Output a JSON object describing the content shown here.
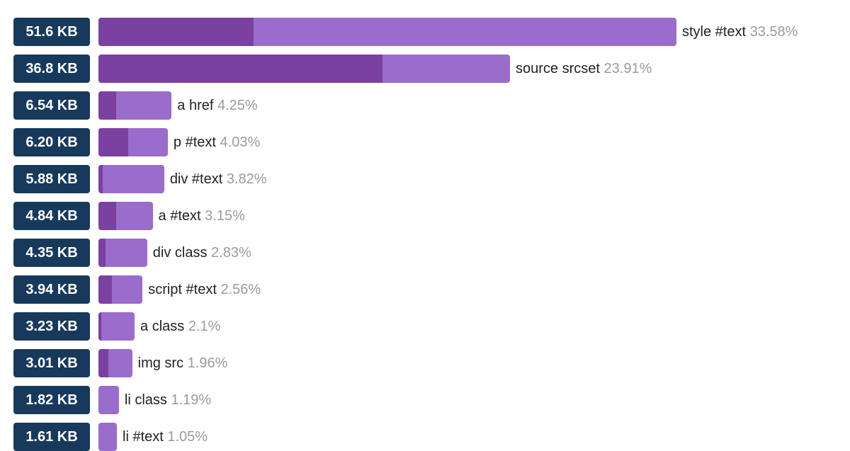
{
  "chart_data": {
    "type": "bar",
    "orientation": "horizontal",
    "colors": {
      "badge": "#173a5c",
      "bar_light": "#9a6ccc",
      "bar_dark": "#7a41a0",
      "label": "#222222",
      "percent": "#9b9b9b"
    },
    "max_percent": 33.58,
    "rows": [
      {
        "size": "51.6 KB",
        "label": "style #text",
        "percent_text": "33.58%",
        "percent": 33.58,
        "dark_fraction": 0.268
      },
      {
        "size": "36.8 KB",
        "label": "source srcset",
        "percent_text": "23.91%",
        "percent": 23.91,
        "dark_fraction": 0.69
      },
      {
        "size": "6.54 KB",
        "label": "a href",
        "percent_text": "4.25%",
        "percent": 4.25,
        "dark_fraction": 0.24
      },
      {
        "size": "6.20 KB",
        "label": "p #text",
        "percent_text": "4.03%",
        "percent": 4.03,
        "dark_fraction": 0.43
      },
      {
        "size": "5.88 KB",
        "label": "div #text",
        "percent_text": "3.82%",
        "percent": 3.82,
        "dark_fraction": 0.06
      },
      {
        "size": "4.84 KB",
        "label": "a #text",
        "percent_text": "3.15%",
        "percent": 3.15,
        "dark_fraction": 0.33
      },
      {
        "size": "4.35 KB",
        "label": "div class",
        "percent_text": "2.83%",
        "percent": 2.83,
        "dark_fraction": 0.15
      },
      {
        "size": "3.94 KB",
        "label": "script #text",
        "percent_text": "2.56%",
        "percent": 2.56,
        "dark_fraction": 0.3
      },
      {
        "size": "3.23 KB",
        "label": "a class",
        "percent_text": "2.1%",
        "percent": 2.1,
        "dark_fraction": 0.08
      },
      {
        "size": "3.01 KB",
        "label": "img src",
        "percent_text": "1.96%",
        "percent": 1.96,
        "dark_fraction": 0.3
      },
      {
        "size": "1.82 KB",
        "label": "li class",
        "percent_text": "1.19%",
        "percent": 1.19,
        "dark_fraction": 0.0
      },
      {
        "size": "1.61 KB",
        "label": "li #text",
        "percent_text": "1.05%",
        "percent": 1.05,
        "dark_fraction": 0.0
      }
    ]
  }
}
